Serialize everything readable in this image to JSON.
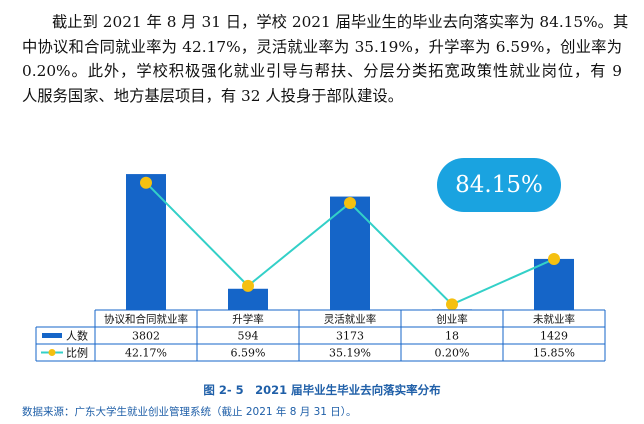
{
  "paragraph": {
    "lines": [
      "截止到 2021 年 8 月 31 日，学校 2021 届毕业生的毕业去向落实率为 84.15%。其",
      "中协议和合同就业率为 42.17%，灵活就业率为 35.19%，升学率为 6.59%，创业率为",
      "0.20%。此外，学校积极强化就业引导与帮扶、分层分类拓宽政策性就业岗位，有 9",
      "人服务国家、地方基层项目，有 32 人投身于部队建设。"
    ]
  },
  "badge": "84.15%",
  "caption": "图 2- 5　2021 届毕业生毕业去向落实率分布",
  "source": "数据来源：广东大学生就业创业管理系统（截止 2021 年 8 月 31 日）。",
  "colors": {
    "bar": "#1565c8",
    "line": "#33d0c8",
    "marker": "#f5c010",
    "badge": "#1aa3e0",
    "caption": "#1f5fa8"
  },
  "chart_data": {
    "type": "bar",
    "categories": [
      "协议和合同就业率",
      "升学率",
      "灵活就业率",
      "创业率",
      "未就业率"
    ],
    "series": [
      {
        "name": "人数",
        "type": "bar",
        "values": [
          3802,
          594,
          3173,
          18,
          1429
        ],
        "labels": [
          "3802",
          "594",
          "3173",
          "18",
          "1429"
        ]
      },
      {
        "name": "比例",
        "type": "line",
        "values": [
          42.17,
          6.59,
          35.19,
          0.2,
          15.85
        ],
        "labels": [
          "42.17%",
          "6.59%",
          "35.19%",
          "0.20%",
          "15.85%"
        ]
      }
    ],
    "bar_ylim": [
      0,
      4000
    ],
    "line_ylim": [
      0,
      50
    ],
    "grid": false,
    "legend": "data-table-left"
  }
}
